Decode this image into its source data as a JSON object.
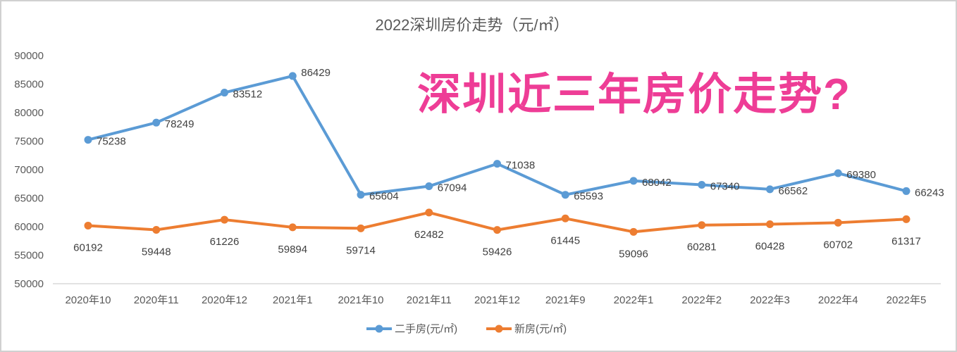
{
  "chart_data": {
    "type": "line",
    "title": "2022深圳房价走势（元/㎡）",
    "overlay_text": "深圳近三年房价走势?",
    "categories": [
      "2020年10",
      "2020年11",
      "2020年12",
      "2021年1",
      "2021年10",
      "2021年11",
      "2021年12",
      "2021年9",
      "2022年1",
      "2022年2",
      "2022年3",
      "2022年4",
      "2022年5"
    ],
    "ylim": [
      50000,
      90000
    ],
    "yticks": [
      50000,
      55000,
      60000,
      65000,
      70000,
      75000,
      80000,
      85000,
      90000
    ],
    "grid": false,
    "legend_position": "bottom",
    "series": [
      {
        "name": "二手房(元/㎡)",
        "color": "#5b9bd5",
        "values": [
          75238,
          78249,
          83512,
          86429,
          65604,
          67094,
          71038,
          65593,
          68042,
          67340,
          66562,
          69380,
          66243
        ]
      },
      {
        "name": "新房(元/㎡)",
        "color": "#ed7d31",
        "values": [
          60192,
          59448,
          61226,
          59894,
          59714,
          62482,
          59426,
          61445,
          59096,
          60281,
          60428,
          60702,
          61317
        ]
      }
    ],
    "overlay_color": "#ee3d96"
  }
}
